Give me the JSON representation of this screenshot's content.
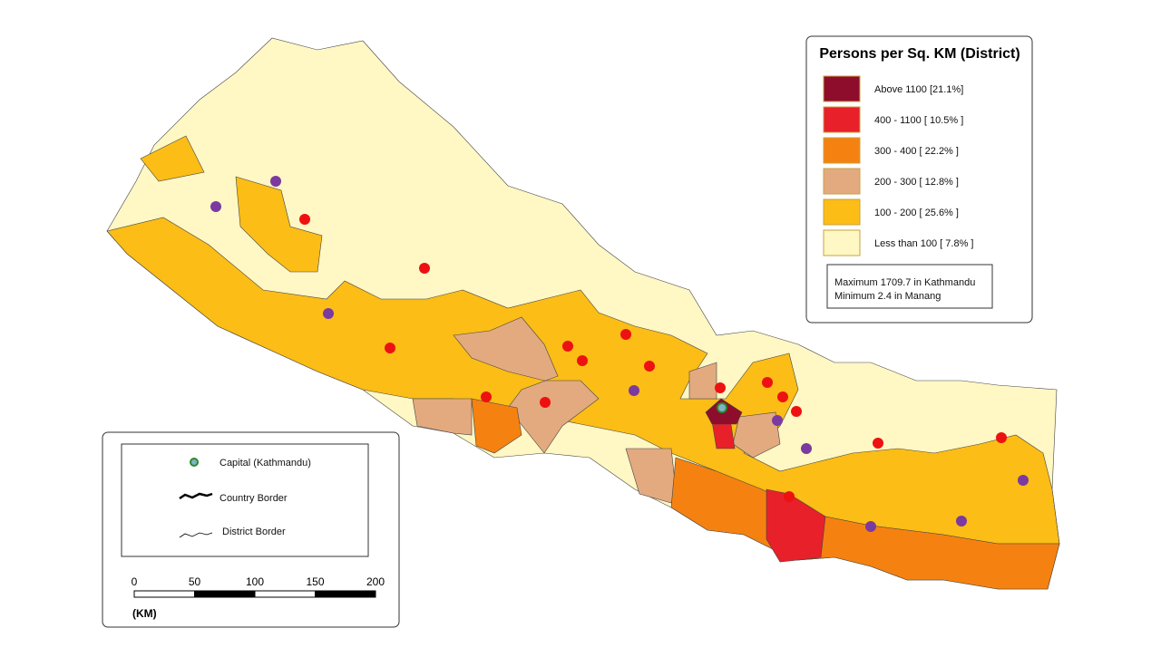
{
  "legend": {
    "title": "Persons per Sq. KM (District)",
    "items": [
      {
        "label": "Above 1100  [21.1%]",
        "color": "#8e0c2c"
      },
      {
        "label": "400 - 1100 [ 10.5% ]",
        "color": "#e8202a"
      },
      {
        "label": "300 - 400 [ 22.2% ]",
        "color": "#f58210"
      },
      {
        "label": "200 - 300 [ 12.8% ]",
        "color": "#e3aa80"
      },
      {
        "label": "100 - 200 [ 25.6% ]",
        "color": "#fbbd16"
      },
      {
        "label": "Less than 100 [ 7.8% ]",
        "color": "#fff7c4"
      }
    ],
    "note": [
      "Maximum 1709.7 in Kathmandu",
      "Minimum  2.4 in Manang"
    ]
  },
  "key": {
    "items": [
      "Capital (Kathmandu)",
      "Country Border",
      "District Border"
    ]
  },
  "scale": {
    "ticks": [
      0,
      50,
      100,
      150,
      200
    ],
    "unit": "(KM)"
  }
}
